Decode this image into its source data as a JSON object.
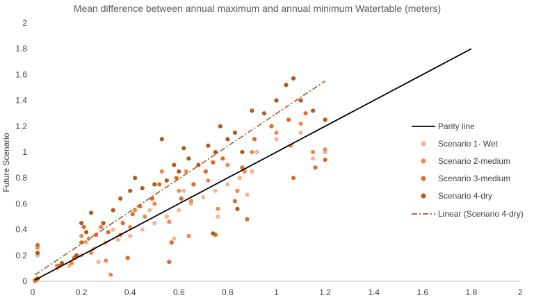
{
  "chart_data": {
    "type": "scatter",
    "title": "Mean difference between annual maximum and annual minimum Watertable (meters)",
    "ylabel": "Future Scenario",
    "xlabel": "",
    "xlim": [
      0,
      2
    ],
    "ylim": [
      0,
      2
    ],
    "xticks": [
      "0",
      "0.2",
      "0.4",
      "0.6",
      "0.8",
      "1",
      "1.2",
      "1.4",
      "1.6",
      "1.8",
      "2"
    ],
    "yticks": [
      "0",
      "0.2",
      "0.4",
      "0.6",
      "0.8",
      "1",
      "1.2",
      "1.4",
      "1.6",
      "1.8",
      "2"
    ],
    "grid": false,
    "legend_position": "right",
    "lines": [
      {
        "name": "Parity line",
        "color": "#000000",
        "style": "solid",
        "x": [
          0.01,
          1.8
        ],
        "y": [
          0.01,
          1.8
        ]
      },
      {
        "name": "Linear (Scenario 4-dry)",
        "color": "#9c5a2a",
        "style": "dashdot",
        "x": [
          0.01,
          1.2
        ],
        "y": [
          0.05,
          1.55
        ]
      }
    ],
    "series": [
      {
        "name": "Scenario 1- Wet",
        "color": "#f4b59a",
        "points": [
          [
            0.01,
            0.01
          ],
          [
            0.02,
            0.2
          ],
          [
            0.1,
            0.1
          ],
          [
            0.15,
            0.12
          ],
          [
            0.2,
            0.2
          ],
          [
            0.22,
            0.3
          ],
          [
            0.25,
            0.25
          ],
          [
            0.3,
            0.3
          ],
          [
            0.35,
            0.32
          ],
          [
            0.4,
            0.35
          ],
          [
            0.45,
            0.4
          ],
          [
            0.5,
            0.45
          ],
          [
            0.55,
            0.5
          ],
          [
            0.6,
            0.55
          ],
          [
            0.62,
            0.7
          ],
          [
            0.65,
            0.6
          ],
          [
            0.7,
            0.65
          ],
          [
            0.75,
            0.7
          ],
          [
            0.8,
            0.75
          ],
          [
            0.85,
            0.8
          ],
          [
            0.9,
            0.85
          ],
          [
            0.92,
            1.0
          ],
          [
            1.0,
            1.1
          ],
          [
            1.1,
            1.15
          ],
          [
            1.15,
            0.95
          ],
          [
            1.2,
            1.0
          ],
          [
            0.58,
            0.33
          ],
          [
            0.76,
            0.5
          ],
          [
            0.88,
            0.67
          ],
          [
            0.48,
            0.55
          ],
          [
            0.33,
            0.4
          ],
          [
            0.27,
            0.15
          ]
        ]
      },
      {
        "name": "Scenario 2-medium",
        "color": "#ee8a4f",
        "points": [
          [
            0.01,
            0.0
          ],
          [
            0.02,
            0.26
          ],
          [
            0.1,
            0.12
          ],
          [
            0.16,
            0.14
          ],
          [
            0.2,
            0.35
          ],
          [
            0.23,
            0.33
          ],
          [
            0.28,
            0.42
          ],
          [
            0.3,
            0.16
          ],
          [
            0.36,
            0.36
          ],
          [
            0.4,
            0.42
          ],
          [
            0.46,
            0.5
          ],
          [
            0.5,
            0.6
          ],
          [
            0.53,
            0.85
          ],
          [
            0.56,
            0.46
          ],
          [
            0.6,
            0.7
          ],
          [
            0.63,
            0.85
          ],
          [
            0.65,
            0.62
          ],
          [
            0.72,
            0.78
          ],
          [
            0.76,
            0.56
          ],
          [
            0.8,
            0.9
          ],
          [
            0.84,
            0.7
          ],
          [
            0.87,
            0.85
          ],
          [
            0.9,
            1.0
          ],
          [
            1.0,
            1.15
          ],
          [
            1.06,
            1.05
          ],
          [
            1.1,
            1.22
          ],
          [
            1.15,
            1.0
          ],
          [
            1.2,
            1.02
          ],
          [
            0.32,
            0.05
          ],
          [
            0.64,
            0.35
          ],
          [
            0.42,
            0.55
          ],
          [
            0.24,
            0.22
          ]
        ]
      },
      {
        "name": "Scenario 3-medium",
        "color": "#dd6b27",
        "points": [
          [
            0.01,
            0.01
          ],
          [
            0.02,
            0.28
          ],
          [
            0.11,
            0.12
          ],
          [
            0.17,
            0.18
          ],
          [
            0.2,
            0.3
          ],
          [
            0.21,
            0.42
          ],
          [
            0.26,
            0.36
          ],
          [
            0.31,
            0.38
          ],
          [
            0.37,
            0.45
          ],
          [
            0.41,
            0.52
          ],
          [
            0.44,
            0.58
          ],
          [
            0.49,
            0.64
          ],
          [
            0.52,
            0.75
          ],
          [
            0.57,
            0.3
          ],
          [
            0.59,
            0.8
          ],
          [
            0.61,
            0.64
          ],
          [
            0.66,
            0.75
          ],
          [
            0.71,
            0.85
          ],
          [
            0.74,
            0.92
          ],
          [
            0.78,
            0.95
          ],
          [
            0.83,
            0.62
          ],
          [
            0.86,
            0.88
          ],
          [
            0.91,
            1.1
          ],
          [
            0.98,
            1.2
          ],
          [
            1.05,
            1.25
          ],
          [
            1.07,
            0.8
          ],
          [
            1.12,
            1.3
          ],
          [
            1.16,
            0.88
          ],
          [
            1.2,
            0.94
          ],
          [
            0.56,
            0.15
          ],
          [
            0.75,
            0.36
          ],
          [
            0.88,
            0.48
          ],
          [
            0.39,
            0.18
          ]
        ]
      },
      {
        "name": "Scenario 4-dry",
        "color": "#b05a1e",
        "points": [
          [
            0.02,
            0.02
          ],
          [
            0.02,
            0.22
          ],
          [
            0.12,
            0.14
          ],
          [
            0.18,
            0.2
          ],
          [
            0.2,
            0.45
          ],
          [
            0.22,
            0.38
          ],
          [
            0.24,
            0.53
          ],
          [
            0.29,
            0.45
          ],
          [
            0.33,
            0.55
          ],
          [
            0.36,
            0.64
          ],
          [
            0.4,
            0.7
          ],
          [
            0.42,
            0.8
          ],
          [
            0.45,
            0.72
          ],
          [
            0.5,
            0.75
          ],
          [
            0.53,
            1.1
          ],
          [
            0.55,
            0.78
          ],
          [
            0.58,
            0.9
          ],
          [
            0.6,
            0.85
          ],
          [
            0.62,
            1.03
          ],
          [
            0.64,
            0.95
          ],
          [
            0.68,
            0.9
          ],
          [
            0.72,
            1.05
          ],
          [
            0.75,
            1.0
          ],
          [
            0.77,
            1.2
          ],
          [
            0.8,
            1.1
          ],
          [
            0.83,
            1.15
          ],
          [
            0.86,
            1.0
          ],
          [
            0.9,
            1.32
          ],
          [
            0.95,
            1.3
          ],
          [
            1.0,
            1.4
          ],
          [
            1.04,
            1.52
          ],
          [
            1.07,
            1.57
          ],
          [
            1.1,
            1.4
          ],
          [
            1.15,
            1.32
          ],
          [
            1.2,
            1.25
          ],
          [
            0.84,
            0.56
          ],
          [
            0.74,
            0.37
          ]
        ]
      }
    ]
  }
}
